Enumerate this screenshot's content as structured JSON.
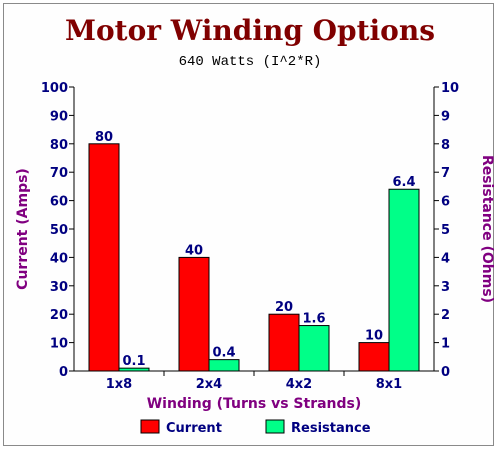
{
  "chart_data": {
    "type": "bar",
    "title": "Motor Winding Options",
    "subtitle": "640 Watts (I^2*R)",
    "categories": [
      "1x8",
      "2x4",
      "4x2",
      "8x1"
    ],
    "xlabel": "Winding (Turns vs Strands)",
    "ylabel": "Current (Amps)",
    "y2label": "Resistance (Ohms)",
    "ylim": [
      0,
      100
    ],
    "y2lim": [
      0,
      10
    ],
    "yticks": [
      "0",
      "10",
      "20",
      "30",
      "40",
      "50",
      "60",
      "70",
      "80",
      "90",
      "100"
    ],
    "y2ticks": [
      "0",
      "1",
      "2",
      "3",
      "4",
      "5",
      "6",
      "7",
      "8",
      "9",
      "10"
    ],
    "series": [
      {
        "name": "Current",
        "axis": "left",
        "values": [
          80,
          40,
          20,
          10
        ],
        "labels": [
          "80",
          "40",
          "20",
          "10"
        ],
        "color": "#ff0000"
      },
      {
        "name": "Resistance",
        "axis": "right",
        "values": [
          0.1,
          0.4,
          1.6,
          6.4
        ],
        "labels": [
          "0.1",
          "0.4",
          "1.6",
          "6.4"
        ],
        "color": "#00ff88"
      }
    ],
    "legend": {
      "position": "bottom"
    },
    "grid": false,
    "colors": {
      "title": "#800000",
      "axis_label": "#800080",
      "tick": "#000080"
    }
  }
}
